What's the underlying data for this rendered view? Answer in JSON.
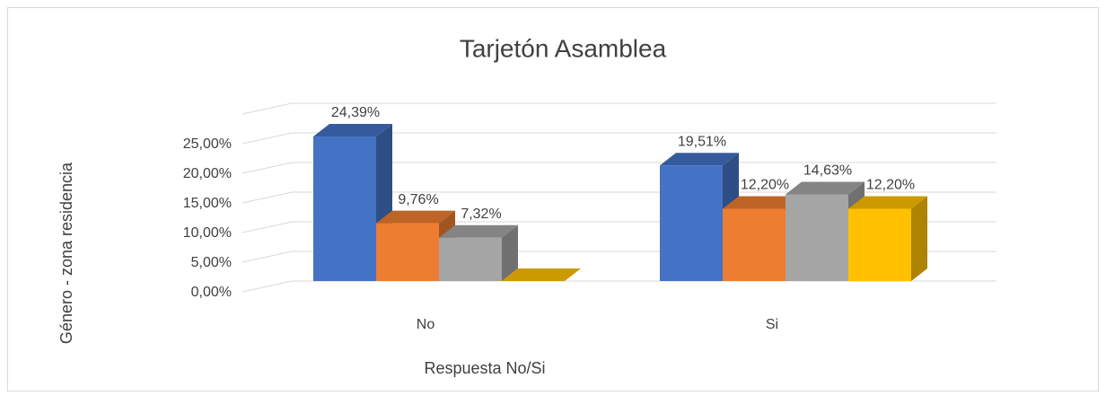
{
  "chart_data": {
    "type": "bar3d",
    "title": "Tarjetón Asamblea",
    "x_label": "Respuesta No/Si",
    "y_label": "Género - zona residencia",
    "categories": [
      "No",
      "Si"
    ],
    "series": [
      {
        "color": "#4472c4",
        "values": [
          24.39,
          19.51
        ],
        "value_labels": [
          "24,39%",
          "19,51%"
        ]
      },
      {
        "color": "#ed7d31",
        "values": [
          9.76,
          12.2
        ],
        "value_labels": [
          "9,76%",
          "12,20%"
        ]
      },
      {
        "color": "#a5a5a5",
        "values": [
          7.32,
          14.63
        ],
        "value_labels": [
          "7,32%",
          "14,63%"
        ]
      },
      {
        "color": "#ffc000",
        "values": [
          0,
          12.2
        ],
        "value_labels": [
          null,
          "12,20%"
        ]
      }
    ],
    "ylim": [
      0,
      30
    ],
    "yticks": [
      {
        "value": 0,
        "label": "0,00%"
      },
      {
        "value": 5,
        "label": "5,00%"
      },
      {
        "value": 10,
        "label": "10,00%"
      },
      {
        "value": 15,
        "label": "15,00%"
      },
      {
        "value": 20,
        "label": "20,00%"
      },
      {
        "value": 25,
        "label": "25,00%"
      }
    ],
    "grid": true
  }
}
